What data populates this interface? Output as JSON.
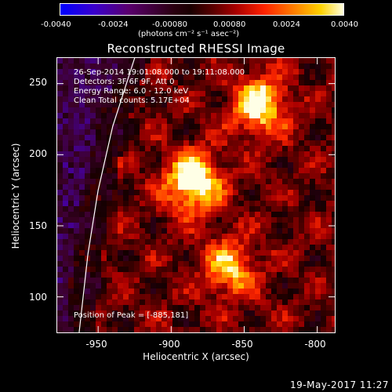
{
  "colorbar": {
    "ticks": [
      "-0.0040",
      "-0.0024",
      "-0.00080",
      "0.00080",
      "0.0024",
      "0.0040"
    ],
    "units": "(photons cm⁻² s⁻¹ asec⁻²)"
  },
  "title": "Reconstructed RHESSI Image",
  "annotations": {
    "time": "26-Sep-2014 19:01:08.000 to 19:11:08.000",
    "detectors": "Detectors: 3F 6F 9F, Att 0",
    "energy": "Energy Range: 6.0 - 12.0 keV",
    "clean": "Clean    Total counts: 5.17E+04",
    "peak": "Position of Peak = [-885,181]"
  },
  "axes": {
    "xlabel": "Heliocentric X (arcsec)",
    "ylabel": "Heliocentric Y (arcsec)",
    "xticks": [
      "-950",
      "-900",
      "-850",
      "-800"
    ],
    "yticks": [
      "250",
      "200",
      "150",
      "100"
    ]
  },
  "timestamp": "19-May-2017 11:27",
  "chart_data": {
    "type": "heatmap",
    "title": "Reconstructed RHESSI Image",
    "xlabel": "Heliocentric X (arcsec)",
    "ylabel": "Heliocentric Y (arcsec)",
    "xlim": [
      -978,
      -788
    ],
    "ylim": [
      75,
      268
    ],
    "xticks": [
      -950,
      -900,
      -850,
      -800
    ],
    "yticks": [
      100,
      150,
      200,
      250
    ],
    "colorbar_range": [
      -0.004,
      0.004
    ],
    "peak_position": [
      -885,
      181
    ],
    "sources": [
      {
        "x": -885,
        "y": 181,
        "rel_intensity": 1.0
      },
      {
        "x": -840,
        "y": 235,
        "rel_intensity": 0.85
      },
      {
        "x": -860,
        "y": 120,
        "rel_intensity": 0.65
      }
    ],
    "limb_curve": [
      [
        -925,
        268
      ],
      [
        -940,
        220
      ],
      [
        -950,
        175
      ],
      [
        -957,
        130
      ],
      [
        -963,
        75
      ]
    ]
  }
}
